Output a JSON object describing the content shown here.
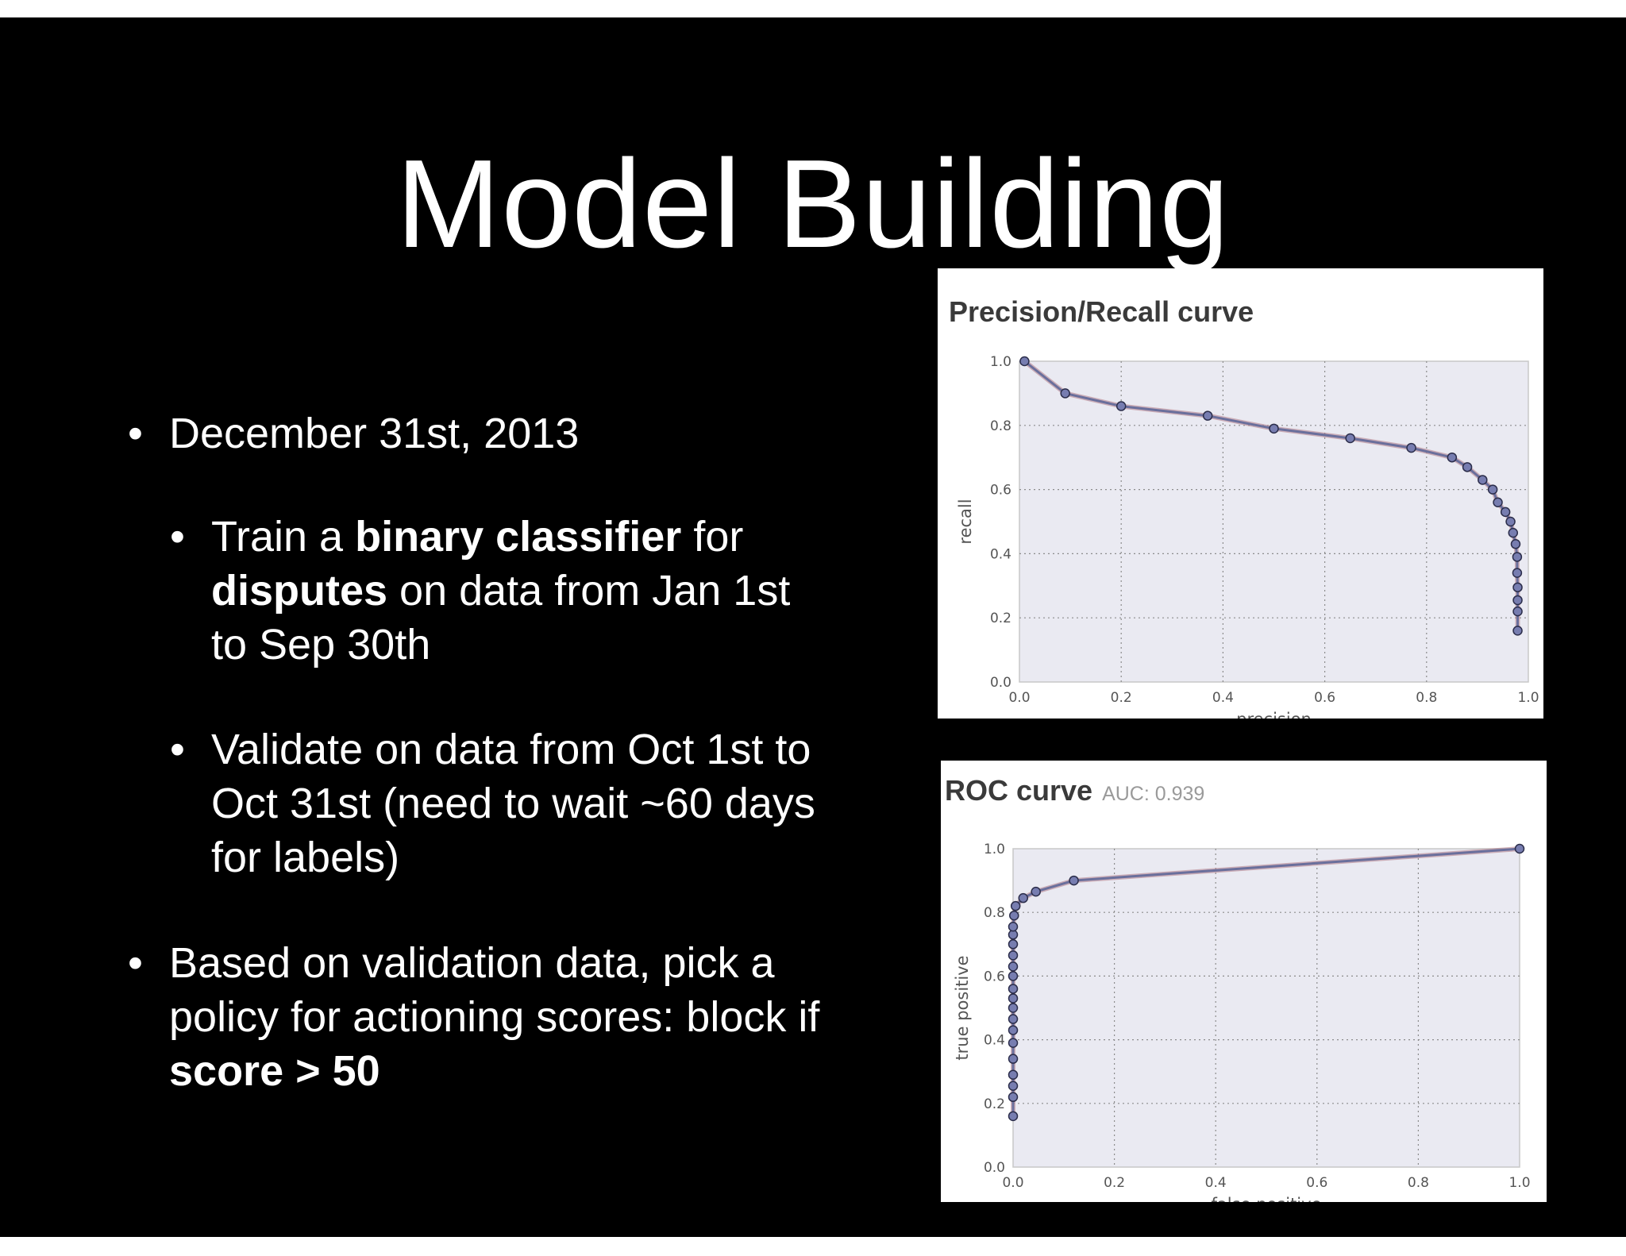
{
  "slide": {
    "title": "Model Building",
    "bullets": [
      {
        "level": 1,
        "segments": [
          {
            "text": "December 31st, 2013",
            "bold": false
          }
        ]
      },
      {
        "level": 2,
        "segments": [
          {
            "text": "Train a ",
            "bold": false
          },
          {
            "text": "binary classifier",
            "bold": true
          },
          {
            "text": " for ",
            "bold": false
          },
          {
            "text": "disputes",
            "bold": true
          },
          {
            "text": " on data from Jan 1st to Sep 30th",
            "bold": false
          }
        ]
      },
      {
        "level": 2,
        "segments": [
          {
            "text": "Validate on data from Oct 1st to Oct 31st (need to wait ~60 days for labels)",
            "bold": false
          }
        ]
      },
      {
        "level": 1,
        "segments": [
          {
            "text": "Based on validation data, pick a policy for actioning scores: block if ",
            "bold": false
          },
          {
            "text": "score > 50",
            "bold": true
          }
        ]
      }
    ],
    "bullet_glyph": "•"
  },
  "colors": {
    "background": "#000000",
    "text": "#ffffff",
    "plot_bg": "#eaeaf2",
    "curve": "#6a6f9c",
    "curve_band": "#b07a86",
    "marker_fill": "#777db0",
    "marker_edge": "#2b2d4a"
  },
  "chart_data": [
    {
      "type": "line",
      "title": "Precision/Recall curve",
      "xlabel": "precision",
      "ylabel": "recall",
      "xlim": [
        0,
        1
      ],
      "ylim": [
        0,
        1
      ],
      "xticks": [
        "0.0",
        "0.2",
        "0.4",
        "0.6",
        "0.8",
        "1.0"
      ],
      "yticks": [
        "0.0",
        "0.2",
        "0.4",
        "0.6",
        "0.8",
        "1.0"
      ],
      "grid": true,
      "series": [
        {
          "x": [
            0.01,
            0.09,
            0.2,
            0.37,
            0.5,
            0.65,
            0.77,
            0.85,
            0.88,
            0.91,
            0.93,
            0.94,
            0.955,
            0.965,
            0.97,
            0.975,
            0.978,
            0.978,
            0.979,
            0.979,
            0.979,
            0.979
          ],
          "y": [
            1.0,
            0.9,
            0.86,
            0.83,
            0.79,
            0.76,
            0.73,
            0.7,
            0.67,
            0.63,
            0.6,
            0.56,
            0.53,
            0.5,
            0.465,
            0.43,
            0.39,
            0.34,
            0.295,
            0.255,
            0.22,
            0.16
          ]
        }
      ]
    },
    {
      "type": "line",
      "title": "ROC curve",
      "subtitle": "AUC: 0.939",
      "xlabel": "false positive",
      "ylabel": "true positive",
      "xlim": [
        0,
        1
      ],
      "ylim": [
        0,
        1
      ],
      "xticks": [
        "0.0",
        "0.2",
        "0.4",
        "0.6",
        "0.8",
        "1.0"
      ],
      "yticks": [
        "0.0",
        "0.2",
        "0.4",
        "0.6",
        "0.8",
        "1.0"
      ],
      "grid": true,
      "series": [
        {
          "x": [
            0.0,
            0.0,
            0.0,
            0.0,
            0.0,
            0.0,
            0.0,
            0.0,
            0.0,
            0.0,
            0.0,
            0.0,
            0.0,
            0.0,
            0.0,
            0.0,
            0.0,
            0.002,
            0.005,
            0.02,
            0.045,
            0.12,
            1.0
          ],
          "y": [
            0.16,
            0.22,
            0.255,
            0.29,
            0.34,
            0.39,
            0.43,
            0.465,
            0.5,
            0.53,
            0.56,
            0.6,
            0.63,
            0.665,
            0.7,
            0.73,
            0.755,
            0.79,
            0.82,
            0.845,
            0.865,
            0.9,
            1.0
          ]
        }
      ]
    }
  ]
}
